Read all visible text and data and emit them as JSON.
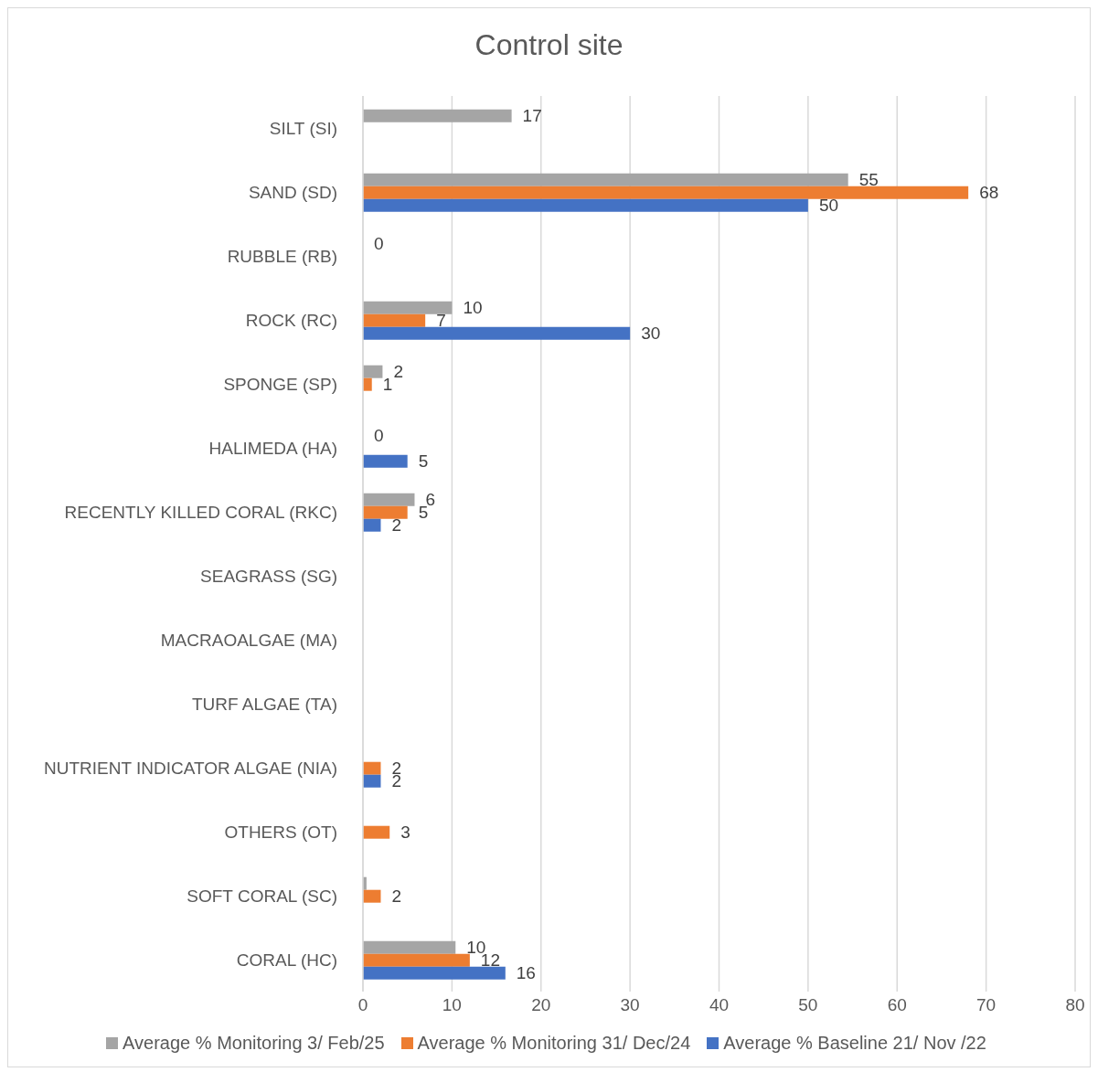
{
  "chart_data": {
    "type": "bar",
    "orientation": "horizontal",
    "title": "Control site",
    "categories": [
      "SILT (SI)",
      "SAND (SD)",
      "RUBBLE (RB)",
      "ROCK (RC)",
      "SPONGE (SP)",
      "HALIMEDA (HA)",
      "RECENTLY KILLED CORAL (RKC)",
      "SEAGRASS (SG)",
      "MACRAOALGAE (MA)",
      "TURF ALGAE (TA)",
      "NUTRIENT INDICATOR ALGAE (NIA)",
      "OTHERS (OT)",
      "SOFT CORAL (SC)",
      "CORAL (HC)"
    ],
    "series": [
      {
        "name": "Average % Monitoring 3/ Feb/25",
        "color": "#a5a5a5",
        "values": [
          16.7,
          54.5,
          0,
          10,
          2.2,
          0,
          5.8,
          null,
          null,
          null,
          null,
          null,
          0.4,
          10.4
        ],
        "value_labels": [
          "17",
          "55",
          "0",
          "10",
          "2",
          "0",
          "6",
          null,
          null,
          null,
          null,
          null,
          null,
          "10"
        ]
      },
      {
        "name": "Average % Monitoring 31/ Dec/24",
        "color": "#ed7d31",
        "values": [
          null,
          68,
          null,
          7,
          1,
          null,
          5,
          null,
          null,
          null,
          2,
          3,
          2,
          12
        ],
        "value_labels": [
          null,
          "68",
          null,
          "7",
          "1",
          null,
          "5",
          null,
          null,
          null,
          "2",
          "3",
          "2",
          "12"
        ]
      },
      {
        "name": "Average % Baseline 21/ Nov /22",
        "color": "#4472c4",
        "values": [
          null,
          50,
          null,
          30,
          null,
          5,
          2,
          null,
          null,
          null,
          2,
          null,
          null,
          16
        ],
        "value_labels": [
          null,
          "50",
          null,
          "30",
          null,
          "5",
          "2",
          null,
          null,
          null,
          "2",
          null,
          null,
          "16"
        ]
      }
    ],
    "xlim": [
      0,
      80
    ],
    "xticks": [
      0,
      10,
      20,
      30,
      40,
      50,
      60,
      70,
      80
    ],
    "grid": "x",
    "legend": "bottom"
  }
}
